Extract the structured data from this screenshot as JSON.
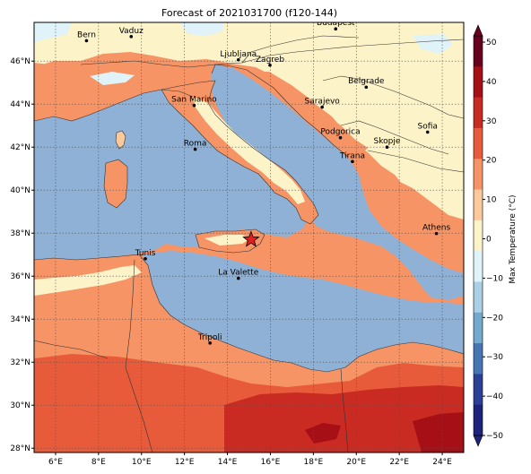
{
  "title": "Forecast of 2021031700 (f120-144)",
  "colorbar": {
    "label": "Max Temperature (°C)",
    "ticks": [
      "50",
      "40",
      "30",
      "20",
      "10",
      "0",
      "−10",
      "−20",
      "−30",
      "−40",
      "−50"
    ],
    "colors": [
      "#67001f",
      "#a50f15",
      "#c92a22",
      "#e85b3a",
      "#f79465",
      "#fbc99a",
      "#fdf3c8",
      "#e0f3f8",
      "#abd0e6",
      "#74a9cf",
      "#4575b4",
      "#2b3f96",
      "#1b237a"
    ]
  },
  "lon_ticks": [
    "6°E",
    "8°E",
    "10°E",
    "12°E",
    "14°E",
    "16°E",
    "18°E",
    "20°E",
    "22°E",
    "24°E"
  ],
  "lat_ticks": [
    "46°N",
    "44°N",
    "42°N",
    "40°N",
    "38°N",
    "36°N",
    "34°N",
    "32°N",
    "30°N",
    "28°N"
  ],
  "cities": [
    {
      "name": "Bern",
      "lon": 7.44,
      "lat": 46.95
    },
    {
      "name": "Vaduz",
      "lon": 9.52,
      "lat": 47.14
    },
    {
      "name": "Budapest",
      "lon": 19.04,
      "lat": 47.5
    },
    {
      "name": "Ljubljana",
      "lon": 14.51,
      "lat": 46.06
    },
    {
      "name": "Zagreb",
      "lon": 15.98,
      "lat": 45.81
    },
    {
      "name": "Belgrade",
      "lon": 20.46,
      "lat": 44.79
    },
    {
      "name": "San Marino",
      "lon": 12.45,
      "lat": 43.94
    },
    {
      "name": "Sarajevo",
      "lon": 18.41,
      "lat": 43.86
    },
    {
      "name": "Sofia",
      "lon": 23.32,
      "lat": 42.7
    },
    {
      "name": "Podgorica",
      "lon": 19.26,
      "lat": 42.44
    },
    {
      "name": "Skopje",
      "lon": 21.43,
      "lat": 42.0
    },
    {
      "name": "Roma",
      "lon": 12.5,
      "lat": 41.9
    },
    {
      "name": "Tirana",
      "lon": 19.82,
      "lat": 41.33
    },
    {
      "name": "Athens",
      "lon": 23.73,
      "lat": 37.98
    },
    {
      "name": "Tunis",
      "lon": 10.18,
      "lat": 36.81
    },
    {
      "name": "La Valette",
      "lon": 14.51,
      "lat": 35.9
    },
    {
      "name": "Tripoli",
      "lon": 13.19,
      "lat": 32.89
    }
  ],
  "marker": {
    "name": "star-marker",
    "lon": 15.1,
    "lat": 37.7,
    "color": "#e02020"
  },
  "colors": {
    "sea": "#8fb1d6",
    "land_hot": "#f79465",
    "land_mild": "#fbc99a",
    "land_cool": "#fdf3c8",
    "land_cold": "#e0f3f8",
    "hot_deep": "#c92a22"
  }
}
